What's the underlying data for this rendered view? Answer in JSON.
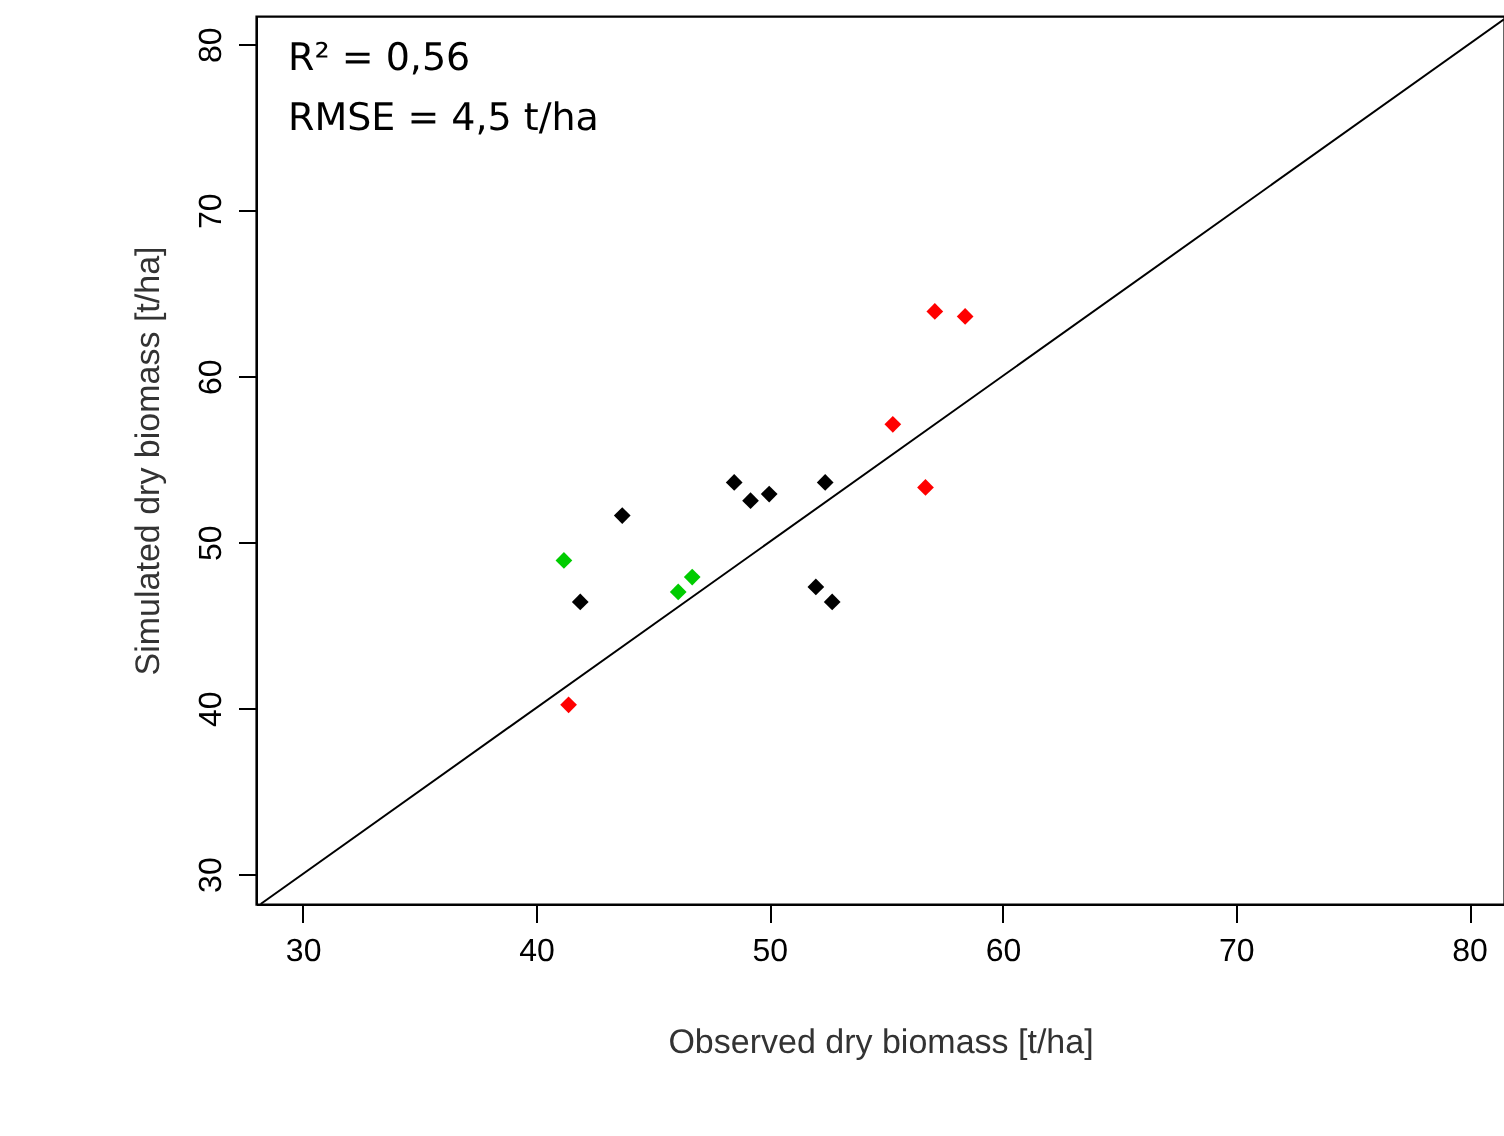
{
  "chart_data": {
    "type": "scatter",
    "xlabel": "Observed dry biomass [t/ha]",
    "ylabel": "Simulated dry biomass [t/ha]",
    "annotations": [
      "R² = 0,56",
      "RMSE = 4,5 t/ha"
    ],
    "xlim": [
      28,
      81.5
    ],
    "ylim": [
      28.2,
      81.7
    ],
    "xticks": [
      30,
      40,
      50,
      60,
      70,
      80
    ],
    "yticks": [
      30,
      40,
      50,
      60,
      70,
      80
    ],
    "grid": false,
    "marker": "diamond",
    "series": [
      {
        "color": "#000000",
        "x": [
          41.9,
          43.7,
          48.5,
          49.2,
          50.0,
          52.4,
          52.0,
          52.7
        ],
        "values": [
          46.4,
          51.6,
          53.6,
          52.5,
          52.9,
          53.6,
          47.3,
          46.4
        ]
      },
      {
        "color": "#00cc00",
        "x": [
          41.2,
          46.1,
          46.7
        ],
        "values": [
          48.9,
          47.0,
          47.9
        ]
      },
      {
        "color": "#ff0000",
        "x": [
          41.4,
          55.3,
          56.7,
          57.1,
          58.4
        ],
        "values": [
          40.2,
          57.1,
          53.3,
          63.9,
          63.6
        ]
      },
      {
        "type": "line",
        "color": "#000000",
        "x": [
          28.2,
          81.5
        ],
        "values": [
          28.2,
          81.5
        ],
        "line_style": "solid",
        "marker": "none"
      }
    ]
  }
}
